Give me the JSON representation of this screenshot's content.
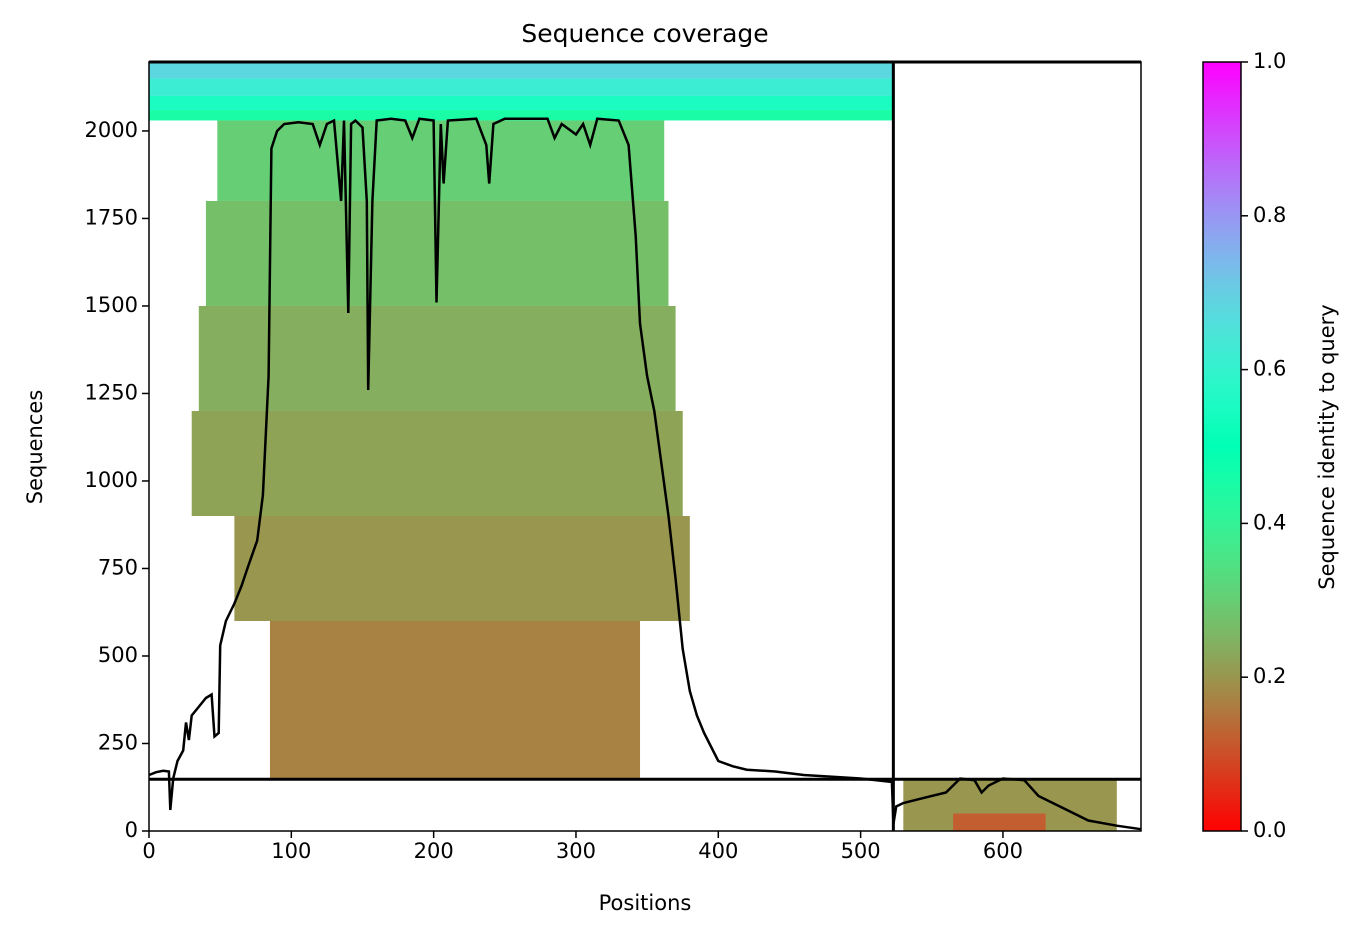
{
  "chart_data": {
    "type": "coverage",
    "title": "Sequence coverage",
    "xlabel": "Positions",
    "ylabel": "Sequences",
    "colorbar_label": "Sequence identity to query",
    "colormap": "rainbow_r",
    "xlim": [
      0,
      697
    ],
    "ylim": [
      0,
      2197
    ],
    "xticks": [
      0,
      100,
      200,
      300,
      400,
      500,
      600
    ],
    "yticks": [
      0,
      250,
      500,
      750,
      1000,
      1250,
      1500,
      1750,
      2000
    ],
    "clim": [
      0,
      1
    ],
    "cticks": [
      {
        "value": 0,
        "label": "0.0"
      },
      0.2,
      0.4,
      0.6,
      0.8,
      {
        "value": 1,
        "label": "1.0"
      }
    ],
    "dividers": {
      "x": [
        523
      ],
      "y": [
        148,
        2197
      ]
    },
    "blocks": [
      {
        "x": [
          0,
          523
        ],
        "y": [
          2030,
          2060
        ],
        "identity": 0.45
      },
      {
        "x": [
          0,
          523
        ],
        "y": [
          2060,
          2100
        ],
        "identity": 0.55
      },
      {
        "x": [
          0,
          523
        ],
        "y": [
          2100,
          2150
        ],
        "identity": 0.62
      },
      {
        "x": [
          0,
          523
        ],
        "y": [
          2150,
          2195
        ],
        "identity": 0.68
      },
      {
        "x": [
          48,
          362
        ],
        "y": [
          1800,
          2030
        ],
        "identity": 0.3
      },
      {
        "x": [
          40,
          365
        ],
        "y": [
          1500,
          1800
        ],
        "identity": 0.27
      },
      {
        "x": [
          35,
          370
        ],
        "y": [
          1200,
          1500
        ],
        "identity": 0.24
      },
      {
        "x": [
          30,
          375
        ],
        "y": [
          900,
          1200
        ],
        "identity": 0.22
      },
      {
        "x": [
          60,
          380
        ],
        "y": [
          600,
          900
        ],
        "identity": 0.2
      },
      {
        "x": [
          85,
          345
        ],
        "y": [
          148,
          600
        ],
        "identity": 0.17
      },
      {
        "x": [
          530,
          680
        ],
        "y": [
          0,
          148
        ],
        "identity": 0.2
      },
      {
        "x": [
          565,
          630
        ],
        "y": [
          0,
          50
        ],
        "identity": 0.12
      }
    ],
    "coverage": {
      "color": "#000000",
      "x": [
        0,
        5,
        10,
        14,
        15,
        17,
        20,
        24,
        26,
        28,
        30,
        34,
        40,
        44,
        46,
        49,
        50,
        54,
        60,
        65,
        70,
        76,
        80,
        84,
        86,
        90,
        95,
        105,
        115,
        120,
        125,
        130,
        135,
        137,
        140,
        142,
        145,
        150,
        153,
        154,
        157,
        160,
        170,
        180,
        185,
        190,
        200,
        202,
        205,
        207,
        210,
        230,
        237,
        239,
        242,
        250,
        280,
        285,
        290,
        300,
        305,
        310,
        315,
        330,
        337,
        342,
        345,
        350,
        355,
        360,
        365,
        370,
        375,
        380,
        385,
        390,
        395,
        400,
        410,
        420,
        440,
        460,
        480,
        500,
        522,
        523,
        525,
        530,
        545,
        560,
        570,
        580,
        585,
        590,
        600,
        615,
        625,
        640,
        660,
        680,
        697
      ],
      "values": [
        160,
        168,
        172,
        170,
        60,
        150,
        200,
        230,
        310,
        260,
        330,
        350,
        380,
        390,
        270,
        280,
        530,
        600,
        650,
        700,
        760,
        830,
        960,
        1300,
        1950,
        2000,
        2020,
        2025,
        2020,
        1960,
        2020,
        2030,
        1800,
        2030,
        1480,
        2020,
        2030,
        2010,
        1800,
        1260,
        1800,
        2030,
        2035,
        2030,
        1980,
        2035,
        2030,
        1510,
        2020,
        1850,
        2030,
        2035,
        1960,
        1850,
        2020,
        2035,
        2035,
        1980,
        2020,
        1990,
        2020,
        1960,
        2035,
        2030,
        1960,
        1700,
        1450,
        1300,
        1200,
        1050,
        900,
        720,
        520,
        400,
        330,
        280,
        240,
        200,
        185,
        175,
        170,
        160,
        155,
        150,
        140,
        20,
        70,
        80,
        95,
        110,
        150,
        145,
        110,
        130,
        150,
        145,
        100,
        70,
        30,
        15,
        5
      ]
    }
  }
}
